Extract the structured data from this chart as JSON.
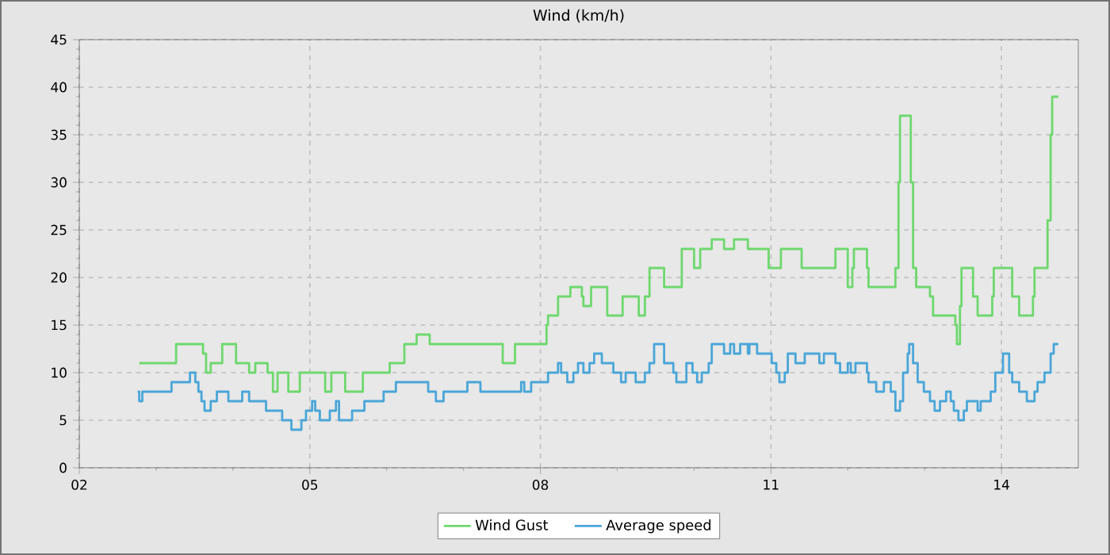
{
  "chart_data": {
    "type": "step",
    "title": "Wind (km/h)",
    "xlim": [
      2,
      15
    ],
    "ylim": [
      0,
      45
    ],
    "xticks": [
      {
        "value": 2,
        "label": "02"
      },
      {
        "value": 5,
        "label": "05"
      },
      {
        "value": 8,
        "label": "08"
      },
      {
        "value": 11,
        "label": "11"
      },
      {
        "value": 14,
        "label": "14"
      }
    ],
    "yticks": [
      0,
      5,
      10,
      15,
      20,
      25,
      30,
      35,
      40,
      45
    ],
    "grid": true,
    "legend": "bottom",
    "line_style": "solid",
    "marker": "none",
    "series": [
      {
        "name": "Wind Gust",
        "color": "#6fd86f",
        "x": [
          2.78,
          3.26,
          3.61,
          3.65,
          3.71,
          3.86,
          4.04,
          4.21,
          4.29,
          4.45,
          4.52,
          4.58,
          4.72,
          4.87,
          5.2,
          5.28,
          5.46,
          5.69,
          6.04,
          6.23,
          6.39,
          6.56,
          7.51,
          7.67,
          8.08,
          8.1,
          8.23,
          8.39,
          8.54,
          8.56,
          8.66,
          8.87,
          9.07,
          9.28,
          9.36,
          9.42,
          9.61,
          9.84,
          10.0,
          10.08,
          10.23,
          10.39,
          10.52,
          10.7,
          10.97,
          11.13,
          11.4,
          11.84,
          12.0,
          12.06,
          12.08,
          12.25,
          12.27,
          12.62,
          12.66,
          12.68,
          12.82,
          12.85,
          12.89,
          13.07,
          13.11,
          13.4,
          13.42,
          13.46,
          13.48,
          13.63,
          13.69,
          13.88,
          13.9,
          14.14,
          14.23,
          14.41,
          14.43,
          14.6,
          14.64,
          14.66,
          14.74
        ],
        "values": [
          11,
          13,
          12,
          10,
          11,
          13,
          11,
          10,
          11,
          10,
          8,
          10,
          8,
          10,
          8,
          10,
          8,
          10,
          11,
          13,
          14,
          13,
          11,
          13,
          15,
          16,
          18,
          19,
          18,
          17,
          19,
          16,
          18,
          16,
          18,
          21,
          19,
          23,
          21,
          23,
          24,
          23,
          24,
          23,
          21,
          23,
          21,
          23,
          19,
          21,
          23,
          21,
          19,
          21,
          30,
          37,
          30,
          21,
          19,
          18,
          16,
          15,
          13,
          17,
          21,
          18,
          16,
          18,
          21,
          18,
          16,
          18,
          21,
          26,
          35,
          39,
          39
        ]
      },
      {
        "name": "Average speed",
        "color": "#4aa6d8",
        "x": [
          2.76,
          2.78,
          2.82,
          3.2,
          3.44,
          3.51,
          3.55,
          3.59,
          3.63,
          3.71,
          3.79,
          3.94,
          4.12,
          4.21,
          4.43,
          4.64,
          4.76,
          4.89,
          4.95,
          5.03,
          5.07,
          5.13,
          5.26,
          5.34,
          5.38,
          5.55,
          5.71,
          5.96,
          6.12,
          6.54,
          6.64,
          6.74,
          7.05,
          7.22,
          7.75,
          7.79,
          7.88,
          8.1,
          8.23,
          8.27,
          8.35,
          8.43,
          8.49,
          8.56,
          8.64,
          8.7,
          8.8,
          8.95,
          9.05,
          9.11,
          9.24,
          9.36,
          9.42,
          9.48,
          9.61,
          9.73,
          9.77,
          9.9,
          9.98,
          10.04,
          10.1,
          10.19,
          10.23,
          10.39,
          10.47,
          10.52,
          10.6,
          10.7,
          10.72,
          10.82,
          11.01,
          11.07,
          11.11,
          11.18,
          11.22,
          11.32,
          11.44,
          11.63,
          11.69,
          11.84,
          11.9,
          12.0,
          12.04,
          12.1,
          12.25,
          12.27,
          12.37,
          12.47,
          12.56,
          12.62,
          12.68,
          12.72,
          12.78,
          12.8,
          12.85,
          12.91,
          12.99,
          13.07,
          13.13,
          13.2,
          13.28,
          13.34,
          13.38,
          13.44,
          13.51,
          13.55,
          13.69,
          13.73,
          13.86,
          13.92,
          14.02,
          14.1,
          14.14,
          14.23,
          14.33,
          14.43,
          14.47,
          14.56,
          14.64,
          14.68,
          14.74
        ],
        "values": [
          8,
          7,
          8,
          9,
          10,
          9,
          8,
          7,
          6,
          7,
          8,
          7,
          8,
          7,
          6,
          5,
          4,
          5,
          6,
          7,
          6,
          5,
          6,
          7,
          5,
          6,
          7,
          8,
          9,
          8,
          7,
          8,
          9,
          8,
          9,
          8,
          9,
          10,
          11,
          10,
          9,
          10,
          11,
          10,
          11,
          12,
          11,
          10,
          9,
          10,
          9,
          10,
          11,
          13,
          11,
          10,
          9,
          11,
          10,
          9,
          10,
          11,
          13,
          12,
          13,
          12,
          13,
          12,
          13,
          12,
          11,
          10,
          9,
          10,
          12,
          11,
          12,
          11,
          12,
          11,
          10,
          11,
          10,
          11,
          10,
          9,
          8,
          9,
          8,
          6,
          7,
          10,
          12,
          13,
          11,
          9,
          8,
          7,
          6,
          7,
          8,
          7,
          6,
          5,
          6,
          7,
          6,
          7,
          8,
          10,
          12,
          10,
          9,
          8,
          7,
          8,
          9,
          10,
          12,
          13,
          13
        ]
      }
    ]
  }
}
